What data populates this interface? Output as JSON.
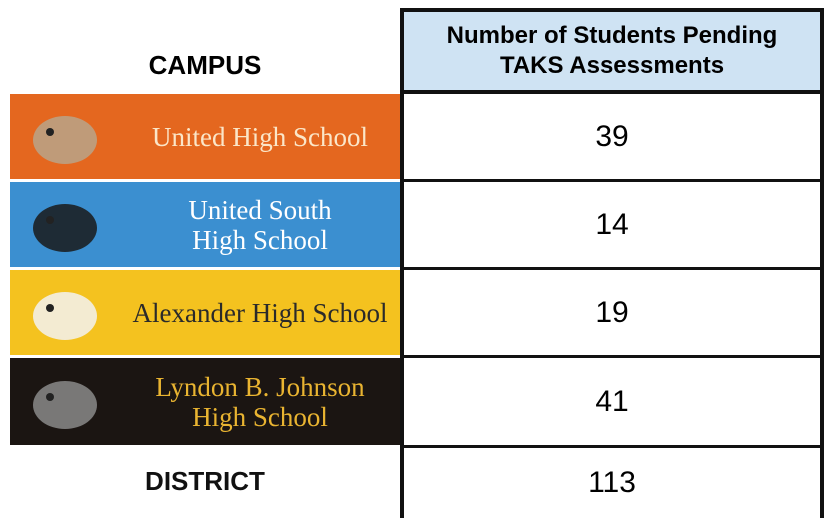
{
  "header": {
    "campus": "CAMPUS",
    "count": [
      "Number of Students Pending",
      "TAKS Assessments"
    ]
  },
  "table": {
    "rows": [
      {
        "name": [
          "United High School"
        ],
        "value": 39
      },
      {
        "name": [
          "United South",
          "High School"
        ],
        "value": 14
      },
      {
        "name": [
          "Alexander High School"
        ],
        "value": 19
      },
      {
        "name": [
          "Lyndon B. Johnson",
          "High School"
        ],
        "value": 41
      }
    ]
  },
  "total": {
    "name": "DISTRICT",
    "value": 113
  }
}
